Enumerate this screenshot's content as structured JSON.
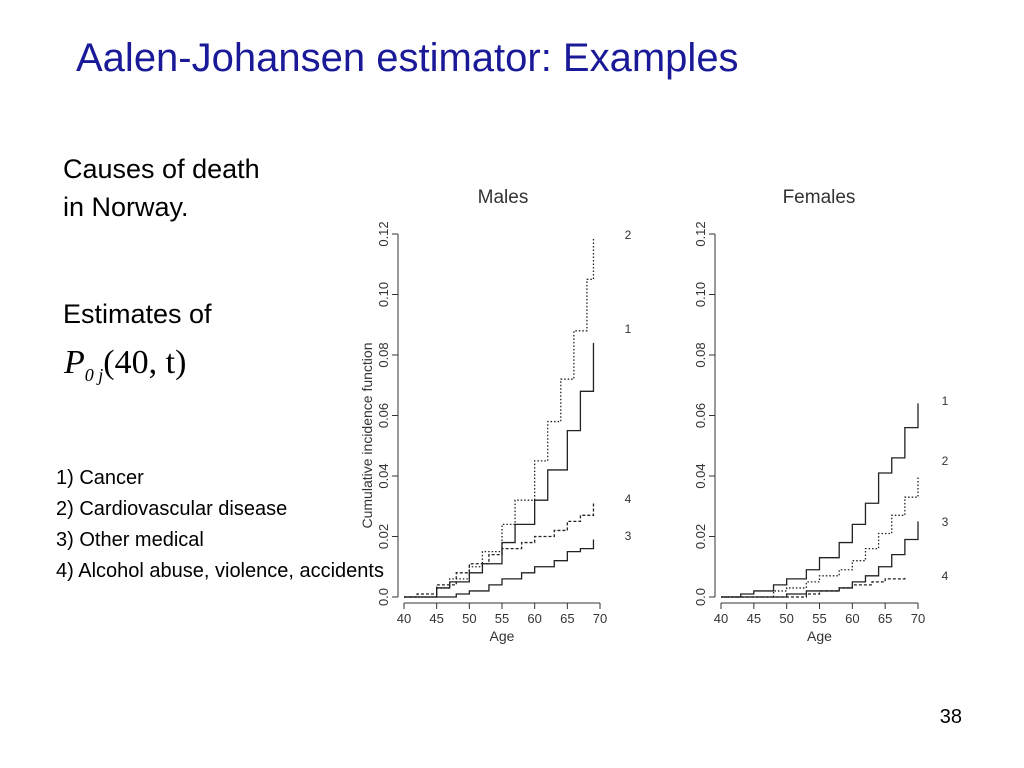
{
  "slide": {
    "title": "Aalen-Johansen estimator: Examples",
    "intro": "Causes of death in Norway.",
    "estimates_label": "Estimates of",
    "formula": {
      "symbol": "P",
      "subscript": "0 j",
      "args": "(40, t)"
    },
    "causes": [
      "1) Cancer",
      "2) Cardiovascular disease",
      "3) Other medical",
      "4) Alcohol abuse, violence, accidents"
    ],
    "page_number": "38"
  },
  "chart_data": [
    {
      "type": "line",
      "title": "Males",
      "xlabel": "Age",
      "ylabel": "Cumulative incidence function",
      "xlim": [
        40,
        70
      ],
      "ylim": [
        0,
        0.12
      ],
      "xticks": [
        "40",
        "45",
        "50",
        "55",
        "60",
        "65",
        "70"
      ],
      "yticks": [
        "0.0",
        "0.02",
        "0.04",
        "0.06",
        "0.08",
        "0.10",
        "0.12"
      ],
      "grid": false,
      "series": [
        {
          "name": "1",
          "style": "solid",
          "x": [
            40,
            43,
            45,
            47,
            50,
            52,
            55,
            57,
            60,
            62,
            65,
            67,
            69
          ],
          "y": [
            0,
            0,
            0.003,
            0.005,
            0.008,
            0.011,
            0.018,
            0.024,
            0.032,
            0.042,
            0.055,
            0.068,
            0.084
          ]
        },
        {
          "name": "2",
          "style": "dotted",
          "x": [
            40,
            43,
            45,
            47,
            50,
            52,
            55,
            57,
            60,
            62,
            64,
            66,
            68,
            69
          ],
          "y": [
            0,
            0,
            0.003,
            0.006,
            0.01,
            0.015,
            0.024,
            0.032,
            0.045,
            0.058,
            0.072,
            0.088,
            0.105,
            0.119
          ]
        },
        {
          "name": "3",
          "style": "solid",
          "x": [
            40,
            45,
            48,
            50,
            53,
            55,
            58,
            60,
            63,
            65,
            67,
            69
          ],
          "y": [
            0,
            0,
            0.001,
            0.002,
            0.004,
            0.006,
            0.008,
            0.01,
            0.012,
            0.015,
            0.016,
            0.019
          ]
        },
        {
          "name": "4",
          "style": "dashed",
          "x": [
            40,
            42,
            45,
            48,
            50,
            53,
            55,
            58,
            60,
            63,
            65,
            67,
            69
          ],
          "y": [
            0,
            0.001,
            0.004,
            0.008,
            0.011,
            0.014,
            0.016,
            0.018,
            0.02,
            0.022,
            0.025,
            0.027,
            0.031
          ]
        }
      ]
    },
    {
      "type": "line",
      "title": "Females",
      "xlabel": "Age",
      "ylabel": "",
      "xlim": [
        40,
        70
      ],
      "ylim": [
        0,
        0.12
      ],
      "xticks": [
        "40",
        "45",
        "50",
        "55",
        "60",
        "65",
        "70"
      ],
      "yticks": [
        "0.0",
        "0.02",
        "0.04",
        "0.06",
        "0.08",
        "0.10",
        "0.12"
      ],
      "grid": false,
      "series": [
        {
          "name": "1",
          "style": "solid",
          "x": [
            40,
            43,
            45,
            48,
            50,
            53,
            55,
            58,
            60,
            62,
            64,
            66,
            68,
            70
          ],
          "y": [
            0,
            0.001,
            0.002,
            0.004,
            0.006,
            0.009,
            0.013,
            0.018,
            0.024,
            0.031,
            0.041,
            0.046,
            0.056,
            0.064
          ]
        },
        {
          "name": "2",
          "style": "dotted",
          "x": [
            40,
            45,
            48,
            50,
            53,
            55,
            58,
            60,
            62,
            64,
            66,
            68,
            70
          ],
          "y": [
            0,
            0,
            0.002,
            0.003,
            0.005,
            0.007,
            0.009,
            0.012,
            0.016,
            0.021,
            0.027,
            0.033,
            0.04
          ]
        },
        {
          "name": "3",
          "style": "solid",
          "x": [
            40,
            48,
            50,
            53,
            55,
            58,
            60,
            62,
            64,
            66,
            68,
            70
          ],
          "y": [
            0,
            0,
            0.001,
            0.002,
            0.002,
            0.003,
            0.005,
            0.007,
            0.01,
            0.014,
            0.019,
            0.025
          ]
        },
        {
          "name": "4",
          "style": "dashed",
          "x": [
            40,
            50,
            53,
            55,
            58,
            60,
            63,
            65,
            68
          ],
          "y": [
            0,
            0,
            0.001,
            0.002,
            0.003,
            0.004,
            0.005,
            0.006,
            0.007
          ]
        }
      ]
    }
  ]
}
